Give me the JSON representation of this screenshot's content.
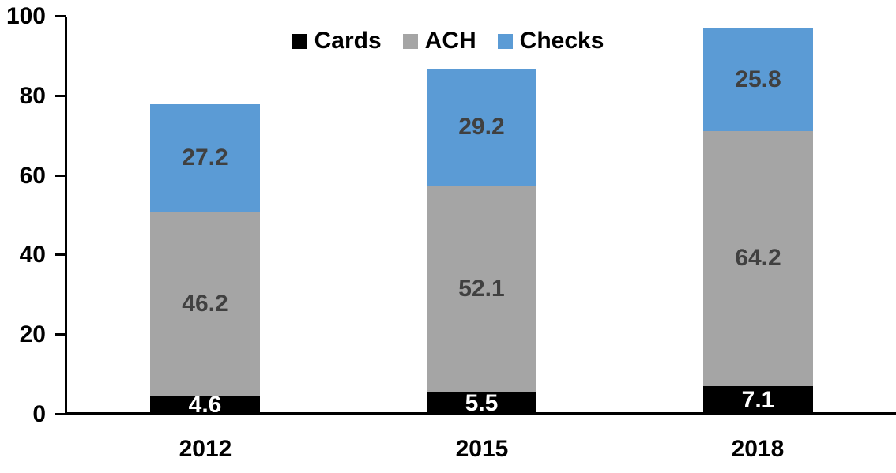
{
  "chart_data": {
    "type": "bar",
    "stacked": true,
    "title": "",
    "xlabel": "",
    "ylabel": "",
    "categories": [
      "2012",
      "2015",
      "2018"
    ],
    "series": [
      {
        "name": "Cards",
        "color": "#000000",
        "label_color": "#ffffff",
        "values": [
          4.6,
          5.5,
          7.1
        ]
      },
      {
        "name": "ACH",
        "color": "#a5a5a5",
        "label_color": "#404040",
        "values": [
          46.2,
          52.1,
          64.2
        ]
      },
      {
        "name": "Checks",
        "color": "#5b9bd5",
        "label_color": "#404040",
        "values": [
          27.2,
          29.2,
          25.8
        ]
      }
    ],
    "totals": [
      78.0,
      86.8,
      97.1
    ],
    "ylim": [
      0,
      100
    ],
    "yticks": [
      0,
      20,
      40,
      60,
      80,
      100
    ],
    "grid": false,
    "legend_position": "top-center",
    "axis_color": "#000000",
    "data_labels_decimals": 1
  }
}
